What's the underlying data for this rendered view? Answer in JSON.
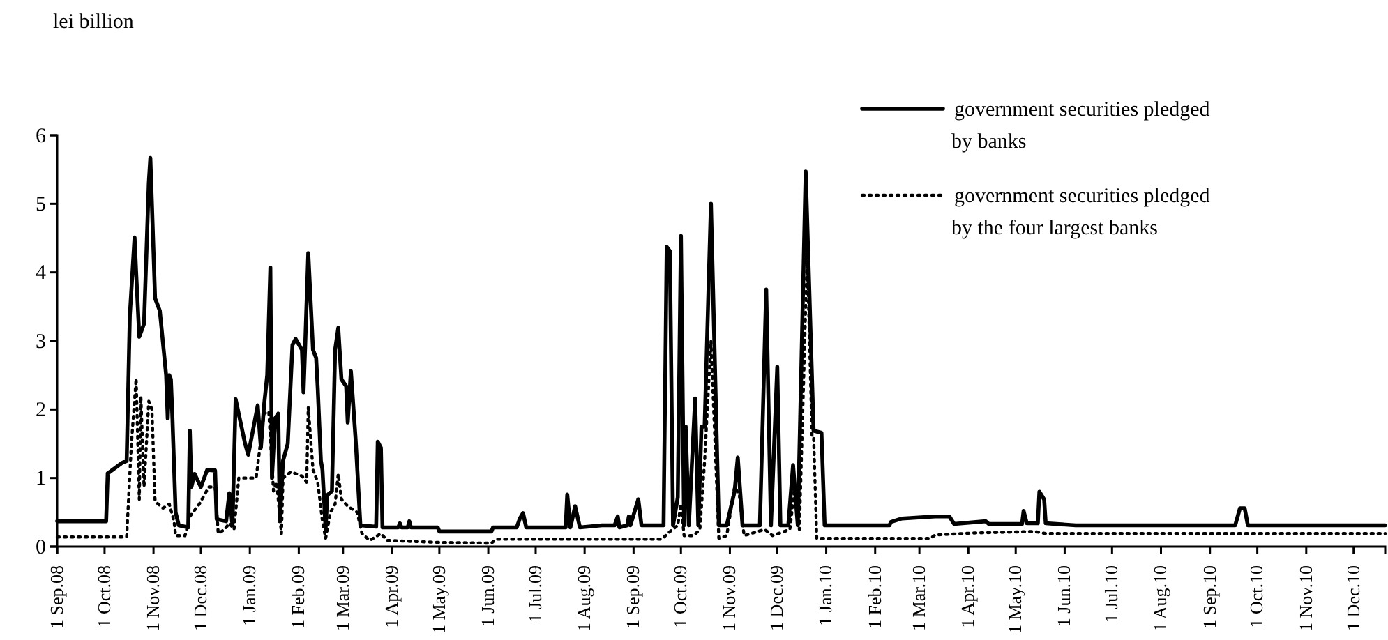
{
  "chart_data": {
    "type": "line",
    "ylabel": "lei billion",
    "xlim": [
      "2008-09-01",
      "2010-12-21"
    ],
    "ylim": [
      0,
      6
    ],
    "yticks": [
      0,
      1,
      2,
      3,
      4,
      5,
      6
    ],
    "xticks": [
      {
        "value": "2008-09-01",
        "label": "1 Sep.08"
      },
      {
        "value": "2008-10-01",
        "label": "1 Oct.08"
      },
      {
        "value": "2008-11-01",
        "label": "1 Nov.08"
      },
      {
        "value": "2008-12-01",
        "label": "1 Dec.08"
      },
      {
        "value": "2009-01-01",
        "label": "1 Jan.09"
      },
      {
        "value": "2009-02-01",
        "label": "1 Feb.09"
      },
      {
        "value": "2009-03-01",
        "label": "1 Mar.09"
      },
      {
        "value": "2009-04-01",
        "label": "1 Apr.09"
      },
      {
        "value": "2009-05-01",
        "label": "1 May.09"
      },
      {
        "value": "2009-06-01",
        "label": "1 Jun.09"
      },
      {
        "value": "2009-07-01",
        "label": "1 Jul.09"
      },
      {
        "value": "2009-08-01",
        "label": "1 Aug.09"
      },
      {
        "value": "2009-09-01",
        "label": "1 Sep.09"
      },
      {
        "value": "2009-10-01",
        "label": "1 Oct.09"
      },
      {
        "value": "2009-11-01",
        "label": "1 Nov.09"
      },
      {
        "value": "2009-12-01",
        "label": "1 Dec.09"
      },
      {
        "value": "2010-01-01",
        "label": "1 Jan.10"
      },
      {
        "value": "2010-02-01",
        "label": "1 Feb.10"
      },
      {
        "value": "2010-03-01",
        "label": "1 Mar.10"
      },
      {
        "value": "2010-04-01",
        "label": "1 Apr.10"
      },
      {
        "value": "2010-05-01",
        "label": "1 May.10"
      },
      {
        "value": "2010-06-01",
        "label": "1 Jun.10"
      },
      {
        "value": "2010-07-01",
        "label": "1 Jul.10"
      },
      {
        "value": "2010-08-01",
        "label": "1 Aug.10"
      },
      {
        "value": "2010-09-01",
        "label": "1 Sep.10"
      },
      {
        "value": "2010-10-01",
        "label": "1 Oct.10"
      },
      {
        "value": "2010-11-01",
        "label": "1 Nov.10"
      },
      {
        "value": "2010-12-01",
        "label": "1 Dec.10"
      }
    ],
    "grid": false,
    "legend": "top right",
    "marker": "none",
    "series": [
      {
        "name": "government securities pledged by banks",
        "color": "#000000",
        "line_style": "solid",
        "x": [
          "2008-09-01",
          "2008-10-02",
          "2008-10-03",
          "2008-10-05",
          "2008-10-12",
          "2008-10-15",
          "2008-10-17",
          "2008-10-20",
          "2008-10-21",
          "2008-10-23",
          "2008-10-26",
          "2008-10-29",
          "2008-10-30",
          "2008-11-02",
          "2008-11-05",
          "2008-11-09",
          "2008-11-10",
          "2008-11-11",
          "2008-11-12",
          "2008-11-13",
          "2008-11-15",
          "2008-11-17",
          "2008-11-23",
          "2008-11-24",
          "2008-11-25",
          "2008-11-27",
          "2008-12-01",
          "2008-12-05",
          "2008-12-10",
          "2008-12-11",
          "2008-12-17",
          "2008-12-19",
          "2008-12-21",
          "2008-12-23",
          "2008-12-29",
          "2008-12-31",
          "2009-01-06",
          "2009-01-08",
          "2009-01-10",
          "2009-01-12",
          "2009-01-14",
          "2009-01-15",
          "2009-01-17",
          "2009-01-19",
          "2009-01-20",
          "2009-01-22",
          "2009-01-25",
          "2009-01-28",
          "2009-01-30",
          "2009-02-03",
          "2009-02-04",
          "2009-02-05",
          "2009-02-07",
          "2009-02-10",
          "2009-02-12",
          "2009-02-13",
          "2009-02-15",
          "2009-02-16",
          "2009-02-18",
          "2009-02-19",
          "2009-02-22",
          "2009-02-24",
          "2009-02-26",
          "2009-02-28",
          "2009-03-03",
          "2009-03-04",
          "2009-03-06",
          "2009-03-09",
          "2009-03-12",
          "2009-03-22",
          "2009-03-23",
          "2009-03-25",
          "2009-03-26",
          "2009-04-05",
          "2009-04-06",
          "2009-04-07",
          "2009-04-11",
          "2009-04-12",
          "2009-04-13",
          "2009-04-30",
          "2009-05-01",
          "2009-06-03",
          "2009-06-04",
          "2009-06-19",
          "2009-06-21",
          "2009-06-23",
          "2009-06-25",
          "2009-07-20",
          "2009-07-21",
          "2009-07-23",
          "2009-07-26",
          "2009-07-29",
          "2009-08-12",
          "2009-08-20",
          "2009-08-22",
          "2009-08-23",
          "2009-08-28",
          "2009-08-29",
          "2009-08-30",
          "2009-09-04",
          "2009-09-06",
          "2009-09-20",
          "2009-09-22",
          "2009-09-24",
          "2009-09-26",
          "2009-09-29",
          "2009-10-01",
          "2009-10-03",
          "2009-10-04",
          "2009-10-06",
          "2009-10-10",
          "2009-10-12",
          "2009-10-14",
          "2009-10-16",
          "2009-10-20",
          "2009-10-25",
          "2009-10-30",
          "2009-11-04",
          "2009-11-06",
          "2009-11-09",
          "2009-11-20",
          "2009-11-24",
          "2009-11-27",
          "2009-12-01",
          "2009-12-03",
          "2009-12-08",
          "2009-12-11",
          "2009-12-14",
          "2009-12-19",
          "2009-12-24",
          "2009-12-29",
          "2009-12-31",
          "2010-02-10",
          "2010-02-11",
          "2010-02-18",
          "2010-03-11",
          "2010-03-20",
          "2010-03-23",
          "2010-04-12",
          "2010-04-14",
          "2010-05-05",
          "2010-05-06",
          "2010-05-08",
          "2010-05-15",
          "2010-05-16",
          "2010-05-19",
          "2010-05-20",
          "2010-06-08",
          "2010-09-17",
          "2010-09-20",
          "2010-09-23",
          "2010-09-25",
          "2010-12-21"
        ],
        "values": [
          0.37,
          0.37,
          1.07,
          1.1,
          1.22,
          1.25,
          3.37,
          4.51,
          4.0,
          3.06,
          3.25,
          5.3,
          5.67,
          3.62,
          3.44,
          2.5,
          1.87,
          2.5,
          2.44,
          1.87,
          0.5,
          0.31,
          0.28,
          1.69,
          0.87,
          1.06,
          0.87,
          1.12,
          1.11,
          0.4,
          0.37,
          0.78,
          0.31,
          2.15,
          1.5,
          1.34,
          2.06,
          1.44,
          2.06,
          2.5,
          4.07,
          1.0,
          1.87,
          1.94,
          0.37,
          1.25,
          1.5,
          2.94,
          3.03,
          2.87,
          2.25,
          2.9,
          4.28,
          2.87,
          2.75,
          2.31,
          1.25,
          1.12,
          0.25,
          0.75,
          0.81,
          2.87,
          3.19,
          2.44,
          2.34,
          1.81,
          2.56,
          1.56,
          0.31,
          0.29,
          1.53,
          1.44,
          0.28,
          0.28,
          0.34,
          0.28,
          0.28,
          0.37,
          0.28,
          0.28,
          0.22,
          0.22,
          0.28,
          0.28,
          0.41,
          0.49,
          0.28,
          0.28,
          0.76,
          0.28,
          0.59,
          0.28,
          0.31,
          0.31,
          0.44,
          0.28,
          0.31,
          0.44,
          0.31,
          0.69,
          0.31,
          0.31,
          4.37,
          4.31,
          0.31,
          0.72,
          4.53,
          0.31,
          1.75,
          0.31,
          2.16,
          0.31,
          1.75,
          1.75,
          5.0,
          0.31,
          0.31,
          0.81,
          1.3,
          0.31,
          0.31,
          3.75,
          0.31,
          2.62,
          0.31,
          0.31,
          1.19,
          0.31,
          5.47,
          1.69,
          1.66,
          0.31,
          0.31,
          0.36,
          0.41,
          0.44,
          0.44,
          0.33,
          0.37,
          0.33,
          0.33,
          0.52,
          0.34,
          0.34,
          0.8,
          0.69,
          0.34,
          0.31,
          0.31,
          0.56,
          0.56,
          0.31,
          0.31
        ]
      },
      {
        "name": "government securities pledged by the four largest banks",
        "color": "#000000",
        "line_style": "dotted",
        "x": [
          "2008-09-01",
          "2008-10-15",
          "2008-10-18",
          "2008-10-21",
          "2008-10-23",
          "2008-10-24",
          "2008-10-26",
          "2008-10-29",
          "2008-10-31",
          "2008-11-02",
          "2008-11-07",
          "2008-11-11",
          "2008-11-14",
          "2008-11-15",
          "2008-11-21",
          "2008-11-24",
          "2008-11-30",
          "2008-12-06",
          "2008-12-10",
          "2008-12-12",
          "2008-12-16",
          "2008-12-19",
          "2008-12-22",
          "2008-12-25",
          "2009-01-05",
          "2009-01-10",
          "2009-01-13",
          "2009-01-16",
          "2009-01-18",
          "2009-01-21",
          "2009-01-22",
          "2009-01-27",
          "2009-02-03",
          "2009-02-06",
          "2009-02-07",
          "2009-02-10",
          "2009-02-13",
          "2009-02-16",
          "2009-02-18",
          "2009-02-21",
          "2009-02-24",
          "2009-02-26",
          "2009-02-28",
          "2009-03-04",
          "2009-03-10",
          "2009-03-13",
          "2009-03-18",
          "2009-03-25",
          "2009-03-29",
          "2009-05-01",
          "2009-06-03",
          "2009-06-06",
          "2009-09-19",
          "2009-09-23",
          "2009-09-29",
          "2009-10-01",
          "2009-10-03",
          "2009-10-09",
          "2009-10-13",
          "2009-10-16",
          "2009-10-20",
          "2009-10-25",
          "2009-10-30",
          "2009-11-04",
          "2009-11-07",
          "2009-11-10",
          "2009-11-23",
          "2009-11-28",
          "2009-12-09",
          "2009-12-12",
          "2009-12-15",
          "2009-12-20",
          "2009-12-23",
          "2009-12-24",
          "2009-12-26",
          "2010-03-08",
          "2010-03-11",
          "2010-04-06",
          "2010-05-13",
          "2010-05-20",
          "2010-12-21"
        ],
        "values": [
          0.14,
          0.14,
          1.5,
          2.45,
          0.69,
          2.19,
          0.87,
          2.12,
          2.0,
          0.66,
          0.56,
          0.62,
          0.37,
          0.16,
          0.16,
          0.44,
          0.62,
          0.87,
          0.87,
          0.19,
          0.25,
          0.34,
          0.25,
          1.0,
          1.0,
          1.94,
          1.97,
          0.81,
          0.94,
          0.19,
          1.0,
          1.09,
          1.03,
          0.94,
          2.03,
          1.12,
          0.94,
          0.37,
          0.12,
          0.5,
          0.62,
          1.06,
          0.69,
          0.59,
          0.5,
          0.19,
          0.09,
          0.19,
          0.09,
          0.06,
          0.05,
          0.11,
          0.11,
          0.2,
          0.31,
          0.62,
          0.16,
          0.16,
          0.25,
          1.25,
          3.0,
          0.12,
          0.16,
          0.87,
          0.75,
          0.16,
          0.25,
          0.16,
          0.25,
          0.87,
          0.25,
          4.3,
          1.62,
          1.62,
          0.12,
          0.12,
          0.17,
          0.2,
          0.22,
          0.19,
          0.19
        ]
      }
    ]
  }
}
